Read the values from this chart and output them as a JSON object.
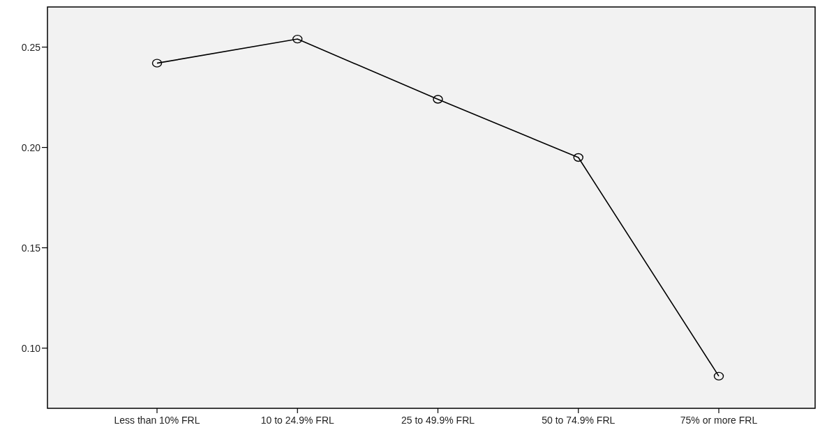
{
  "chart_data": {
    "type": "line",
    "categories": [
      "Less than 10% FRL",
      "10 to 24.9% FRL",
      "25 to 49.9% FRL",
      "50 to 74.9% FRL",
      "75% or more FRL"
    ],
    "series": [
      {
        "color": "#000000",
        "values": [
          0.242,
          0.254,
          0.224,
          0.195,
          0.086
        ]
      }
    ],
    "ylim": [
      0.07,
      0.27
    ],
    "yticks": [
      {
        "value": 0.1,
        "label": "0.10"
      },
      {
        "value": 0.15,
        "label": "0.15"
      },
      {
        "value": 0.2,
        "label": "0.20"
      },
      {
        "value": 0.25,
        "label": "0.25"
      }
    ],
    "marker": "circle",
    "line_style": "solid",
    "grid": false
  }
}
